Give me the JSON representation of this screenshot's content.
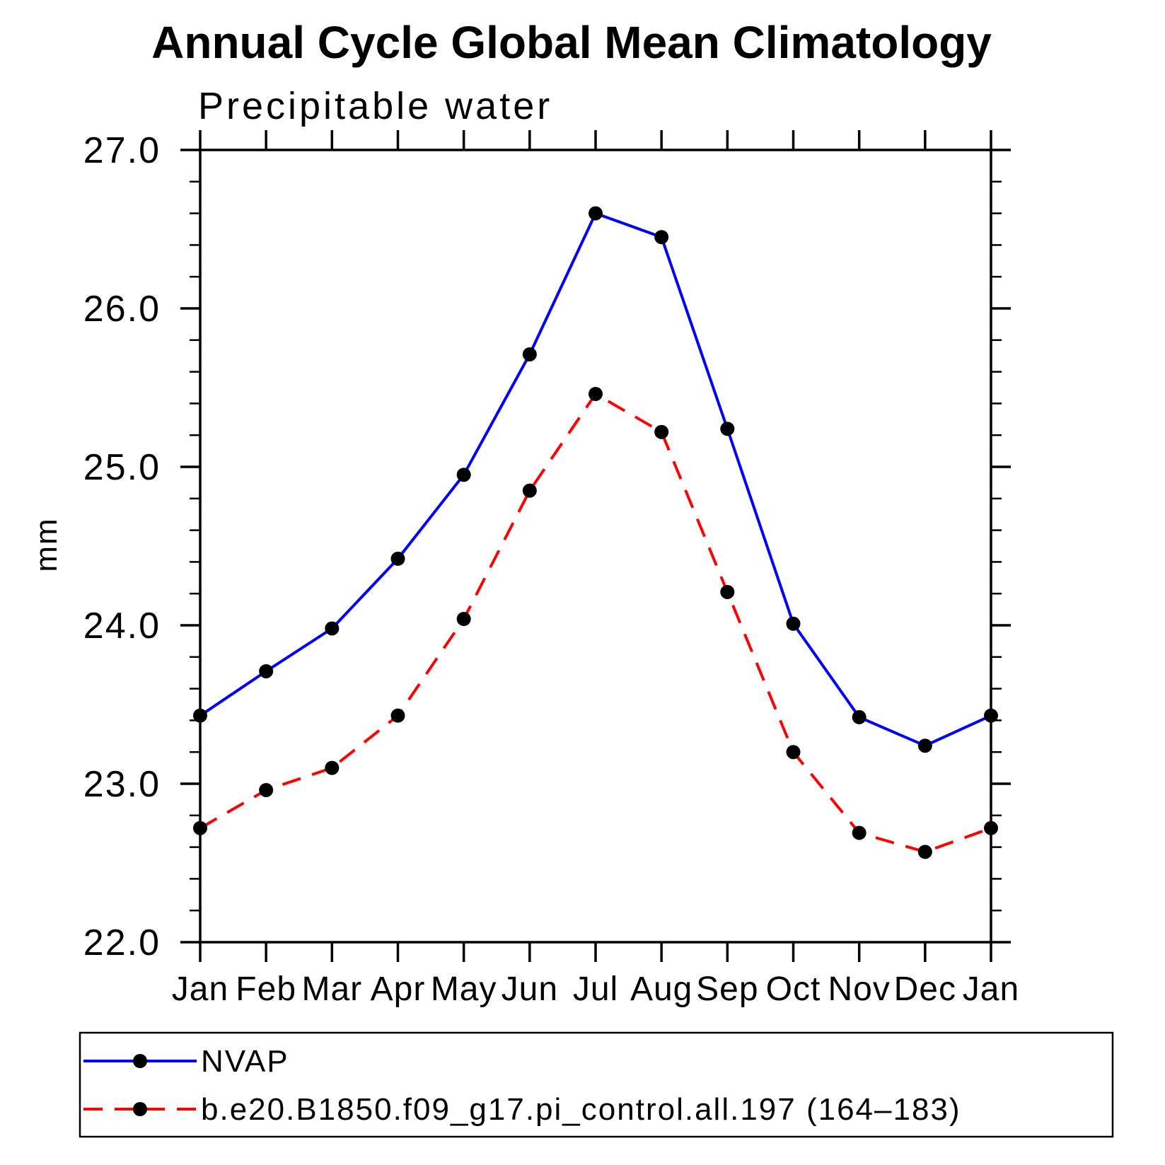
{
  "chart_data": {
    "type": "line",
    "title": "Annual Cycle Global Mean Climatology",
    "subtitle": "Precipitable water",
    "ylabel": "mm",
    "categories": [
      "Jan",
      "Feb",
      "Mar",
      "Apr",
      "May",
      "Jun",
      "Jul",
      "Aug",
      "Sep",
      "Oct",
      "Nov",
      "Dec",
      "Jan"
    ],
    "ylim": [
      22.0,
      27.0
    ],
    "y_major_step": 1.0,
    "y_minor_step": 0.2,
    "y_tick_labels": [
      "22.0",
      "23.0",
      "24.0",
      "25.0",
      "26.0",
      "27.0"
    ],
    "grid": false,
    "legend_position": "bottom-box",
    "series": [
      {
        "name": "NVAP",
        "color": "#0000ff",
        "line_style": "solid",
        "marker": "filled-circle",
        "marker_color": "#000000",
        "values": [
          23.43,
          23.71,
          23.98,
          24.42,
          24.95,
          25.71,
          26.6,
          26.45,
          25.24,
          24.01,
          23.42,
          23.24,
          23.43
        ]
      },
      {
        "name": "b.e20.B1850.f09_g17.pi_control.all.197 (164–183)",
        "color": "#ff0000",
        "line_style": "dashed",
        "marker": "filled-circle",
        "marker_color": "#000000",
        "values": [
          22.72,
          22.96,
          23.1,
          23.43,
          24.04,
          24.85,
          25.46,
          25.22,
          24.21,
          23.2,
          22.69,
          22.57,
          22.72
        ]
      }
    ]
  }
}
